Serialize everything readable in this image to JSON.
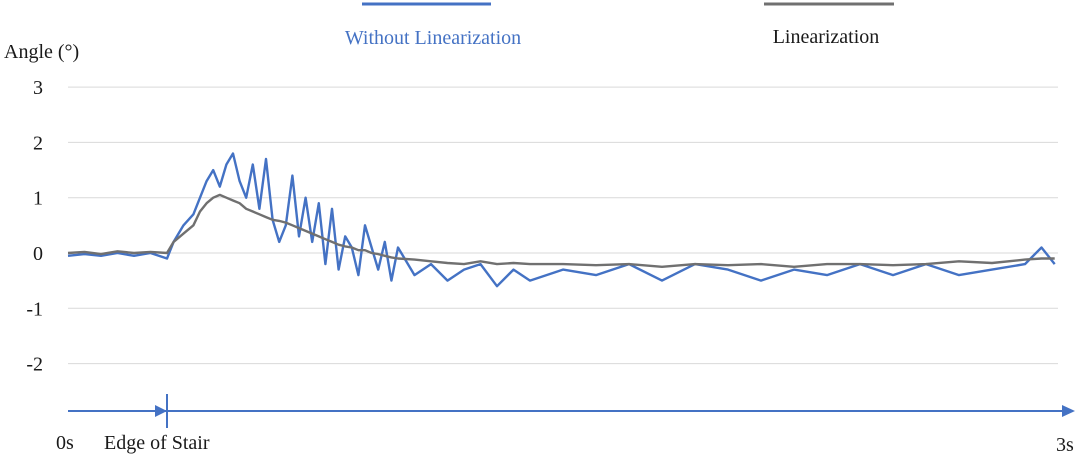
{
  "chart_data": {
    "type": "line",
    "ylabel": "Angle (°)",
    "xlabel": "",
    "xlim": [
      0,
      3
    ],
    "ylim": [
      -3,
      3
    ],
    "y_ticks": [
      "3",
      "2",
      "1",
      "0",
      "-1",
      "-2"
    ],
    "y_tick_values": [
      3,
      2,
      1,
      0,
      -1,
      -2
    ],
    "grid": true,
    "legend_position": "top",
    "time_axis": {
      "start_label": "0s",
      "end_label": "3s",
      "event_label": "Edge of Stair",
      "event_time": 0.3
    },
    "series": [
      {
        "name": "Without Linearization",
        "color": "#4472C4",
        "x": [
          0,
          0.05,
          0.1,
          0.15,
          0.2,
          0.25,
          0.3,
          0.32,
          0.35,
          0.38,
          0.4,
          0.42,
          0.44,
          0.46,
          0.48,
          0.5,
          0.52,
          0.54,
          0.56,
          0.58,
          0.6,
          0.62,
          0.64,
          0.66,
          0.68,
          0.7,
          0.72,
          0.74,
          0.76,
          0.78,
          0.8,
          0.82,
          0.84,
          0.86,
          0.88,
          0.9,
          0.92,
          0.94,
          0.96,
          0.98,
          1.0,
          1.05,
          1.1,
          1.15,
          1.2,
          1.25,
          1.3,
          1.35,
          1.4,
          1.5,
          1.6,
          1.7,
          1.8,
          1.9,
          2.0,
          2.1,
          2.2,
          2.3,
          2.4,
          2.5,
          2.6,
          2.7,
          2.8,
          2.9,
          2.95,
          2.99
        ],
        "values": [
          -0.05,
          -0.02,
          -0.05,
          0.0,
          -0.05,
          0.0,
          -0.1,
          0.2,
          0.5,
          0.7,
          1.0,
          1.3,
          1.5,
          1.2,
          1.6,
          1.8,
          1.3,
          1.0,
          1.6,
          0.8,
          1.7,
          0.6,
          0.2,
          0.5,
          1.4,
          0.3,
          1.0,
          0.2,
          0.9,
          -0.2,
          0.8,
          -0.3,
          0.3,
          0.1,
          -0.4,
          0.5,
          0.1,
          -0.3,
          0.2,
          -0.5,
          0.1,
          -0.4,
          -0.2,
          -0.5,
          -0.3,
          -0.2,
          -0.6,
          -0.3,
          -0.5,
          -0.3,
          -0.4,
          -0.2,
          -0.5,
          -0.2,
          -0.3,
          -0.5,
          -0.3,
          -0.4,
          -0.2,
          -0.4,
          -0.2,
          -0.4,
          -0.3,
          -0.2,
          0.1,
          -0.2
        ]
      },
      {
        "name": "Linearization",
        "color": "#707070",
        "x": [
          0,
          0.05,
          0.1,
          0.15,
          0.2,
          0.25,
          0.3,
          0.32,
          0.35,
          0.38,
          0.4,
          0.42,
          0.44,
          0.46,
          0.48,
          0.5,
          0.52,
          0.54,
          0.56,
          0.58,
          0.6,
          0.62,
          0.64,
          0.66,
          0.68,
          0.7,
          0.72,
          0.74,
          0.76,
          0.78,
          0.8,
          0.82,
          0.84,
          0.86,
          0.88,
          0.9,
          0.92,
          0.94,
          0.96,
          0.98,
          1.0,
          1.05,
          1.1,
          1.15,
          1.2,
          1.25,
          1.3,
          1.35,
          1.4,
          1.5,
          1.6,
          1.7,
          1.8,
          1.9,
          2.0,
          2.1,
          2.2,
          2.3,
          2.4,
          2.5,
          2.6,
          2.7,
          2.8,
          2.9,
          2.95,
          2.99
        ],
        "values": [
          0.0,
          0.02,
          -0.02,
          0.03,
          0.0,
          0.02,
          0.0,
          0.2,
          0.35,
          0.5,
          0.75,
          0.9,
          1.0,
          1.05,
          1.0,
          0.95,
          0.9,
          0.8,
          0.75,
          0.7,
          0.65,
          0.6,
          0.58,
          0.55,
          0.5,
          0.45,
          0.4,
          0.35,
          0.3,
          0.25,
          0.2,
          0.15,
          0.12,
          0.1,
          0.05,
          0.05,
          0.0,
          -0.02,
          -0.05,
          -0.08,
          -0.1,
          -0.12,
          -0.15,
          -0.18,
          -0.2,
          -0.15,
          -0.2,
          -0.18,
          -0.2,
          -0.2,
          -0.22,
          -0.2,
          -0.25,
          -0.2,
          -0.22,
          -0.2,
          -0.25,
          -0.2,
          -0.2,
          -0.22,
          -0.2,
          -0.15,
          -0.18,
          -0.12,
          -0.1,
          -0.1
        ]
      }
    ]
  }
}
